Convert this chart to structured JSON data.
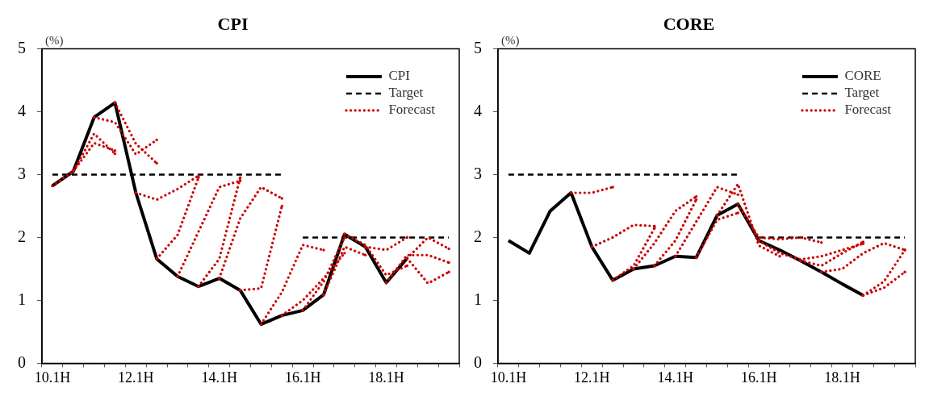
{
  "chart_data": [
    {
      "type": "line",
      "title": "CPI",
      "ylabel": "(%)",
      "legend": "top right",
      "categories": [
        "10.1H",
        null,
        null,
        null,
        "12.1H",
        null,
        null,
        null,
        "14.1H",
        null,
        null,
        null,
        "16.1H",
        null,
        null,
        null,
        "18.1H",
        null,
        null,
        null
      ],
      "ylim": [
        0,
        5
      ],
      "yticks": [
        0,
        1,
        2,
        3,
        4,
        5
      ],
      "series": [
        {
          "name": "CPI",
          "color": "#000000",
          "line_style": "solid",
          "values": [
            2.82,
            3.05,
            3.91,
            4.14,
            2.71,
            1.66,
            1.38,
            1.22,
            1.35,
            1.16,
            0.62,
            0.76,
            0.84,
            1.09,
            2.05,
            1.85,
            1.28,
            1.67,
            null,
            null
          ]
        },
        {
          "name": "Target",
          "color": "#000000",
          "line_style": "dashed",
          "values": [
            3,
            3,
            3,
            3,
            3,
            3,
            3,
            3,
            3,
            3,
            3,
            3,
            null,
            null,
            null,
            null,
            null,
            null,
            null,
            null
          ]
        },
        {
          "color": "#000000",
          "line_style": "dashed",
          "values": [
            null,
            null,
            null,
            null,
            null,
            null,
            null,
            null,
            null,
            null,
            null,
            null,
            2,
            2,
            2,
            2,
            2,
            2,
            2,
            2
          ]
        },
        {
          "name": "Forecast",
          "color": "#cc0000",
          "line_style": "dotted",
          "values": [
            2.82,
            3.05,
            3.65,
            3.33,
            null,
            null,
            null,
            null,
            null,
            null,
            null,
            null,
            null,
            null,
            null,
            null,
            null,
            null,
            null,
            null
          ]
        },
        {
          "color": "#cc0000",
          "line_style": "dotted",
          "values": [
            null,
            3.05,
            3.5,
            3.38,
            null,
            null,
            null,
            null,
            null,
            null,
            null,
            null,
            null,
            null,
            null,
            null,
            null,
            null,
            null,
            null
          ]
        },
        {
          "color": "#cc0000",
          "line_style": "dotted",
          "values": [
            null,
            null,
            3.91,
            3.83,
            3.32,
            3.55,
            null,
            null,
            null,
            null,
            null,
            null,
            null,
            null,
            null,
            null,
            null,
            null,
            null,
            null
          ]
        },
        {
          "color": "#cc0000",
          "line_style": "dotted",
          "values": [
            null,
            null,
            null,
            4.14,
            3.49,
            3.18,
            null,
            null,
            null,
            null,
            null,
            null,
            null,
            null,
            null,
            null,
            null,
            null,
            null,
            null
          ]
        },
        {
          "color": "#cc0000",
          "line_style": "dotted",
          "values": [
            null,
            null,
            null,
            null,
            2.71,
            2.6,
            2.77,
            2.98,
            null,
            null,
            null,
            null,
            null,
            null,
            null,
            null,
            null,
            null,
            null,
            null
          ]
        },
        {
          "color": "#cc0000",
          "line_style": "dotted",
          "values": [
            null,
            null,
            null,
            null,
            null,
            1.66,
            2.04,
            2.95,
            null,
            null,
            null,
            null,
            null,
            null,
            null,
            null,
            null,
            null,
            null,
            null
          ]
        },
        {
          "color": "#cc0000",
          "line_style": "dotted",
          "values": [
            null,
            null,
            null,
            null,
            null,
            null,
            1.38,
            2.09,
            2.8,
            2.9,
            null,
            null,
            null,
            null,
            null,
            null,
            null,
            null,
            null,
            null
          ]
        },
        {
          "color": "#cc0000",
          "line_style": "dotted",
          "values": [
            null,
            null,
            null,
            null,
            null,
            null,
            null,
            1.22,
            1.66,
            2.95,
            null,
            null,
            null,
            null,
            null,
            null,
            null,
            null,
            null,
            null
          ]
        },
        {
          "color": "#cc0000",
          "line_style": "dotted",
          "values": [
            null,
            null,
            null,
            null,
            null,
            null,
            null,
            null,
            1.35,
            2.3,
            2.8,
            2.62,
            null,
            null,
            null,
            null,
            null,
            null,
            null,
            null
          ]
        },
        {
          "color": "#cc0000",
          "line_style": "dotted",
          "values": [
            null,
            null,
            null,
            null,
            null,
            null,
            null,
            null,
            null,
            1.16,
            1.19,
            2.5,
            null,
            null,
            null,
            null,
            null,
            null,
            null,
            null
          ]
        },
        {
          "color": "#cc0000",
          "line_style": "dotted",
          "values": [
            null,
            null,
            null,
            null,
            null,
            null,
            null,
            null,
            null,
            null,
            0.62,
            1.13,
            1.88,
            1.8,
            null,
            null,
            null,
            null,
            null,
            null
          ]
        },
        {
          "color": "#cc0000",
          "line_style": "dotted",
          "values": [
            null,
            null,
            null,
            null,
            null,
            null,
            null,
            null,
            null,
            null,
            null,
            0.76,
            1.0,
            1.35,
            1.75,
            null,
            null,
            null,
            null,
            null
          ]
        },
        {
          "color": "#cc0000",
          "line_style": "dotted",
          "values": [
            null,
            null,
            null,
            null,
            null,
            null,
            null,
            null,
            null,
            null,
            null,
            null,
            0.84,
            1.3,
            2.0,
            null,
            null,
            null,
            null,
            null
          ]
        },
        {
          "color": "#cc0000",
          "line_style": "dotted",
          "values": [
            null,
            null,
            null,
            null,
            null,
            null,
            null,
            null,
            null,
            null,
            null,
            null,
            null,
            1.09,
            1.85,
            1.72,
            null,
            null,
            null,
            null
          ]
        },
        {
          "color": "#cc0000",
          "line_style": "dotted",
          "values": [
            null,
            null,
            null,
            null,
            null,
            null,
            null,
            null,
            null,
            null,
            null,
            null,
            null,
            null,
            2.05,
            1.88,
            1.4,
            1.55,
            null,
            null
          ]
        },
        {
          "color": "#cc0000",
          "line_style": "dotted",
          "values": [
            null,
            null,
            null,
            null,
            null,
            null,
            null,
            null,
            null,
            null,
            null,
            null,
            null,
            null,
            null,
            1.85,
            1.8,
            2.0,
            null,
            null
          ]
        },
        {
          "color": "#cc0000",
          "line_style": "dotted",
          "values": [
            null,
            null,
            null,
            null,
            null,
            null,
            null,
            null,
            null,
            null,
            null,
            null,
            null,
            null,
            null,
            null,
            1.28,
            1.72,
            1.72,
            1.6
          ]
        },
        {
          "color": "#cc0000",
          "line_style": "dotted",
          "values": [
            null,
            null,
            null,
            null,
            null,
            null,
            null,
            null,
            null,
            null,
            null,
            null,
            null,
            null,
            null,
            null,
            null,
            1.67,
            2.0,
            1.82
          ]
        },
        {
          "color": "#cc0000",
          "line_style": "dotted",
          "values": [
            null,
            null,
            null,
            null,
            null,
            null,
            null,
            null,
            null,
            null,
            null,
            null,
            null,
            null,
            null,
            null,
            null,
            1.67,
            1.27,
            1.45
          ]
        }
      ]
    },
    {
      "type": "line",
      "title": "CORE",
      "ylabel": "(%)",
      "legend": "top right",
      "categories": [
        "10.1H",
        null,
        null,
        null,
        "12.1H",
        null,
        null,
        null,
        "14.1H",
        null,
        null,
        null,
        "16.1H",
        null,
        null,
        null,
        "18.1H",
        null,
        null,
        null
      ],
      "ylim": [
        0,
        5
      ],
      "yticks": [
        0,
        1,
        2,
        3,
        4,
        5
      ],
      "series": [
        {
          "name": "CORE",
          "color": "#000000",
          "line_style": "solid",
          "values": [
            1.95,
            1.75,
            2.42,
            2.71,
            1.85,
            1.32,
            1.5,
            1.55,
            1.7,
            1.68,
            2.35,
            2.53,
            1.95,
            1.8,
            1.63,
            1.45,
            1.26,
            1.08,
            null,
            null
          ]
        },
        {
          "name": "Target",
          "color": "#000000",
          "line_style": "dashed",
          "values": [
            3,
            3,
            3,
            3,
            3,
            3,
            3,
            3,
            3,
            3,
            3,
            3,
            null,
            null,
            null,
            null,
            null,
            null,
            null,
            null
          ]
        },
        {
          "color": "#000000",
          "line_style": "dashed",
          "values": [
            null,
            null,
            null,
            null,
            null,
            null,
            null,
            null,
            null,
            null,
            null,
            null,
            2,
            2,
            2,
            2,
            2,
            2,
            2,
            2
          ]
        },
        {
          "name": "Forecast",
          "color": "#cc0000",
          "line_style": "dotted",
          "values": [
            null,
            null,
            null,
            2.71,
            2.71,
            2.8,
            null,
            null,
            null,
            null,
            null,
            null,
            null,
            null,
            null,
            null,
            null,
            null,
            null,
            null
          ]
        },
        {
          "color": "#cc0000",
          "line_style": "dotted",
          "values": [
            null,
            null,
            null,
            null,
            1.85,
            2.0,
            2.2,
            2.18,
            null,
            null,
            null,
            null,
            null,
            null,
            null,
            null,
            null,
            null,
            null,
            null
          ]
        },
        {
          "color": "#cc0000",
          "line_style": "dotted",
          "values": [
            null,
            null,
            null,
            null,
            null,
            1.32,
            1.55,
            2.15,
            null,
            null,
            null,
            null,
            null,
            null,
            null,
            null,
            null,
            null,
            null,
            null
          ]
        },
        {
          "color": "#cc0000",
          "line_style": "dotted",
          "values": [
            null,
            null,
            null,
            null,
            null,
            null,
            1.5,
            1.91,
            2.42,
            2.65,
            null,
            null,
            null,
            null,
            null,
            null,
            null,
            null,
            null,
            null
          ]
        },
        {
          "color": "#cc0000",
          "line_style": "dotted",
          "values": [
            null,
            null,
            null,
            null,
            null,
            null,
            null,
            1.55,
            1.95,
            2.6,
            null,
            null,
            null,
            null,
            null,
            null,
            null,
            null,
            null,
            null
          ]
        },
        {
          "color": "#cc0000",
          "line_style": "dotted",
          "values": [
            null,
            null,
            null,
            null,
            null,
            null,
            null,
            null,
            1.7,
            2.25,
            2.8,
            2.68,
            null,
            null,
            null,
            null,
            null,
            null,
            null,
            null
          ]
        },
        {
          "color": "#cc0000",
          "line_style": "dotted",
          "values": [
            null,
            null,
            null,
            null,
            null,
            null,
            null,
            null,
            null,
            1.68,
            2.28,
            2.39,
            null,
            null,
            null,
            null,
            null,
            null,
            null,
            null
          ]
        },
        {
          "color": "#cc0000",
          "line_style": "dotted",
          "values": [
            null,
            null,
            null,
            null,
            null,
            null,
            null,
            null,
            null,
            null,
            2.35,
            2.85,
            1.87,
            1.7,
            null,
            null,
            null,
            null,
            null,
            null
          ]
        },
        {
          "color": "#cc0000",
          "line_style": "dotted",
          "values": [
            null,
            null,
            null,
            null,
            null,
            null,
            null,
            null,
            null,
            null,
            null,
            2.53,
            2.0,
            1.97,
            2.0,
            1.92,
            null,
            null,
            null,
            null
          ]
        },
        {
          "color": "#cc0000",
          "line_style": "dotted",
          "values": [
            null,
            null,
            null,
            null,
            null,
            null,
            null,
            null,
            null,
            null,
            null,
            null,
            1.95,
            1.75,
            1.65,
            1.7,
            1.8,
            1.9,
            null,
            null
          ]
        },
        {
          "color": "#cc0000",
          "line_style": "dotted",
          "values": [
            null,
            null,
            null,
            null,
            null,
            null,
            null,
            null,
            null,
            null,
            null,
            null,
            null,
            null,
            1.63,
            1.55,
            1.75,
            1.93,
            null,
            null
          ]
        },
        {
          "color": "#cc0000",
          "line_style": "dotted",
          "values": [
            null,
            null,
            null,
            null,
            null,
            null,
            null,
            null,
            null,
            null,
            null,
            null,
            null,
            null,
            null,
            1.45,
            1.5,
            1.75,
            1.91,
            1.8
          ]
        },
        {
          "color": "#cc0000",
          "line_style": "dotted",
          "values": [
            null,
            null,
            null,
            null,
            null,
            null,
            null,
            null,
            null,
            null,
            null,
            null,
            null,
            null,
            null,
            null,
            null,
            1.08,
            1.3,
            1.8
          ]
        },
        {
          "color": "#cc0000",
          "line_style": "dotted",
          "values": [
            null,
            null,
            null,
            null,
            null,
            null,
            null,
            null,
            null,
            null,
            null,
            null,
            null,
            null,
            null,
            null,
            null,
            1.08,
            1.2,
            1.45
          ]
        }
      ]
    }
  ]
}
